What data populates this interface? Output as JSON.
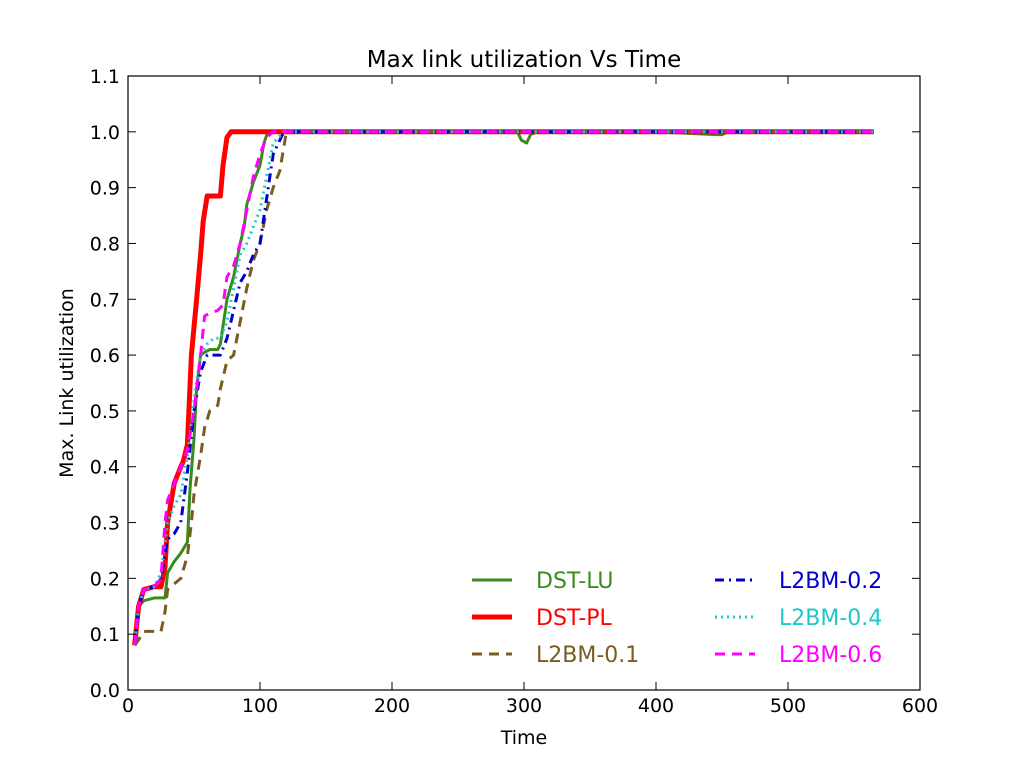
{
  "chart_data": {
    "type": "line",
    "title": "Max link utilization Vs Time",
    "xlabel": "Time",
    "ylabel": "Max. Link utilization",
    "xlim": [
      0,
      600
    ],
    "ylim": [
      0.0,
      1.1
    ],
    "xticks": [
      0,
      100,
      200,
      300,
      400,
      500,
      600
    ],
    "yticks": [
      0.0,
      0.1,
      0.2,
      0.3,
      0.4,
      0.5,
      0.6,
      0.7,
      0.8,
      0.9,
      1.0,
      1.1
    ],
    "xtick_labels": [
      "0",
      "100",
      "200",
      "300",
      "400",
      "500",
      "600"
    ],
    "ytick_labels": [
      "0.0",
      "0.1",
      "0.2",
      "0.3",
      "0.4",
      "0.5",
      "0.6",
      "0.7",
      "0.8",
      "0.9",
      "1.0",
      "1.1"
    ],
    "grid": false,
    "legend_position": "lower-right",
    "series": [
      {
        "name": "DST-LU",
        "color": "#3a8a1e",
        "style": "solid",
        "x": [
          5,
          8,
          12,
          20,
          28,
          30,
          35,
          40,
          45,
          47,
          50,
          52,
          55,
          58,
          62,
          68,
          70,
          75,
          80,
          85,
          88,
          90,
          95,
          100,
          103,
          106,
          110,
          200,
          295,
          298,
          302,
          305,
          310,
          350,
          400,
          445,
          450,
          455,
          500,
          565
        ],
        "y": [
          0.08,
          0.15,
          0.16,
          0.165,
          0.165,
          0.21,
          0.23,
          0.245,
          0.265,
          0.36,
          0.45,
          0.54,
          0.6,
          0.605,
          0.61,
          0.61,
          0.62,
          0.7,
          0.74,
          0.8,
          0.83,
          0.87,
          0.91,
          0.94,
          0.98,
          1.0,
          1.0,
          1.0,
          1.0,
          0.985,
          0.98,
          0.995,
          1.0,
          1.0,
          1.0,
          0.995,
          0.995,
          1.0,
          1.0,
          1.0
        ]
      },
      {
        "name": "DST-PL",
        "color": "#ff0000",
        "style": "solid",
        "x": [
          5,
          8,
          12,
          20,
          25,
          28,
          30,
          35,
          40,
          42,
          45,
          48,
          52,
          55,
          57,
          60,
          65,
          70,
          72,
          75,
          78,
          100,
          200,
          300,
          400,
          500,
          565
        ],
        "y": [
          0.08,
          0.15,
          0.18,
          0.185,
          0.185,
          0.22,
          0.3,
          0.37,
          0.4,
          0.41,
          0.44,
          0.6,
          0.7,
          0.78,
          0.84,
          0.885,
          0.885,
          0.885,
          0.94,
          0.99,
          1.0,
          1.0,
          1.0,
          1.0,
          1.0,
          1.0,
          1.0
        ]
      },
      {
        "name": "L2BM-0.1",
        "color": "#7a5c1e",
        "style": "dashed",
        "x": [
          5,
          8,
          12,
          20,
          25,
          28,
          30,
          35,
          40,
          45,
          48,
          50,
          55,
          58,
          62,
          68,
          70,
          75,
          80,
          85,
          90,
          95,
          100,
          105,
          110,
          115,
          120,
          200,
          300,
          400,
          500,
          565
        ],
        "y": [
          0.08,
          0.09,
          0.105,
          0.105,
          0.105,
          0.14,
          0.18,
          0.19,
          0.2,
          0.24,
          0.3,
          0.35,
          0.42,
          0.47,
          0.5,
          0.51,
          0.54,
          0.59,
          0.6,
          0.66,
          0.72,
          0.77,
          0.8,
          0.86,
          0.9,
          0.93,
          1.0,
          1.0,
          1.0,
          1.0,
          1.0,
          1.0
        ]
      },
      {
        "name": "L2BM-0.2",
        "color": "#0000cc",
        "style": "dashdot",
        "x": [
          5,
          8,
          12,
          20,
          25,
          30,
          35,
          40,
          45,
          50,
          55,
          60,
          65,
          70,
          75,
          80,
          85,
          90,
          95,
          100,
          105,
          110,
          118,
          200,
          300,
          400,
          500,
          565
        ],
        "y": [
          0.08,
          0.15,
          0.18,
          0.185,
          0.2,
          0.27,
          0.28,
          0.3,
          0.39,
          0.5,
          0.57,
          0.6,
          0.6,
          0.6,
          0.63,
          0.68,
          0.73,
          0.75,
          0.78,
          0.8,
          0.88,
          0.96,
          1.0,
          1.0,
          1.0,
          1.0,
          1.0,
          1.0
        ]
      },
      {
        "name": "L2BM-0.4",
        "color": "#1ec8c8",
        "style": "dotted",
        "x": [
          5,
          8,
          12,
          20,
          25,
          30,
          35,
          40,
          45,
          50,
          55,
          60,
          65,
          70,
          75,
          80,
          85,
          90,
          95,
          100,
          105,
          110,
          118,
          200,
          300,
          400,
          500,
          565
        ],
        "y": [
          0.08,
          0.15,
          0.18,
          0.185,
          0.21,
          0.3,
          0.33,
          0.35,
          0.42,
          0.52,
          0.6,
          0.62,
          0.63,
          0.63,
          0.66,
          0.72,
          0.78,
          0.8,
          0.83,
          0.86,
          0.92,
          0.98,
          1.0,
          1.0,
          1.0,
          1.0,
          1.0,
          1.0
        ]
      },
      {
        "name": "L2BM-0.6",
        "color": "#ff00ff",
        "style": "dashed",
        "x": [
          5,
          8,
          12,
          20,
          25,
          28,
          30,
          35,
          40,
          45,
          50,
          55,
          58,
          62,
          68,
          72,
          75,
          80,
          85,
          90,
          95,
          100,
          105,
          110,
          200,
          300,
          400,
          500,
          565
        ],
        "y": [
          0.08,
          0.15,
          0.18,
          0.185,
          0.2,
          0.3,
          0.34,
          0.37,
          0.4,
          0.43,
          0.5,
          0.6,
          0.67,
          0.675,
          0.68,
          0.69,
          0.74,
          0.76,
          0.8,
          0.86,
          0.92,
          0.96,
          0.99,
          1.0,
          1.0,
          1.0,
          1.0,
          1.0,
          1.0
        ]
      }
    ]
  }
}
